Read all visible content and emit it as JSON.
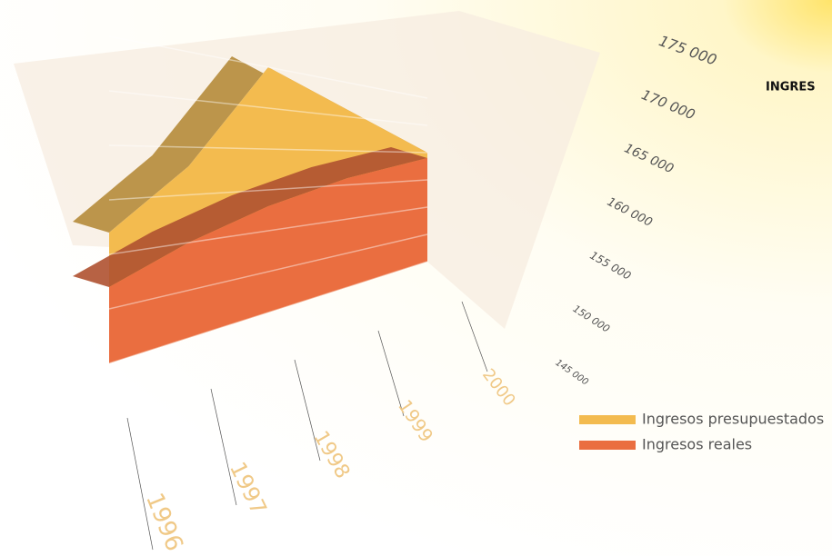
{
  "chart_data": {
    "type": "area3d",
    "title": "INGRES",
    "categories": [
      "1996",
      "1997",
      "1998",
      "1999",
      "2000"
    ],
    "series": [
      {
        "name": "Ingresos presupuestados",
        "color": "#f3bb4f",
        "values": [
          157000,
          163000,
          175000,
          171000,
          165000
        ]
      },
      {
        "name": "Ingresos reales",
        "color": "#ea6e40",
        "values": [
          152000,
          155000,
          158000,
          161000,
          164000
        ]
      }
    ],
    "ylim": [
      145000,
      175000
    ],
    "yticks": [
      {
        "value": 145000,
        "label": "145 000"
      },
      {
        "value": 150000,
        "label": "150 000"
      },
      {
        "value": 155000,
        "label": "155 000"
      },
      {
        "value": 160000,
        "label": "160 000"
      },
      {
        "value": 165000,
        "label": "165 000"
      },
      {
        "value": 170000,
        "label": "170 000"
      },
      {
        "value": 175000,
        "label": "175 000"
      }
    ],
    "grid": true
  }
}
